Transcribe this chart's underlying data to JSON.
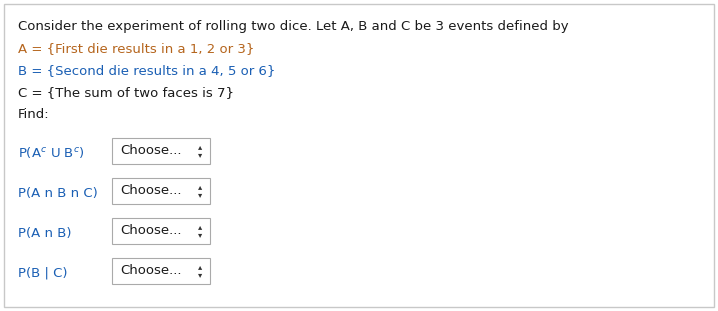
{
  "bg_color": "#ffffff",
  "border_color": "#c8c8c8",
  "text_color_black": "#1a1a1a",
  "text_color_blue": "#1a5fb4",
  "text_color_orange": "#b5651d",
  "header_text": "Consider the experiment of rolling two dice. Let A, B and C be 3 events defined by",
  "line_A": "A = {First die results in a 1, 2 or 3}",
  "line_B": "B = {Second die results in a 4, 5 or 6}",
  "line_C": "C = {The sum of two faces is 7}",
  "line_find": "Find:",
  "font_size": 9.5,
  "question_labels": [
    "P(A$^c$ U B$^c$)",
    "P(A n B n C)",
    "P(A n B)",
    "P(B | C)"
  ],
  "question_colors": [
    "#1a5fb4",
    "#1a5fb4",
    "#1a5fb4",
    "#1a5fb4"
  ],
  "box_text": "Choose...",
  "arrow_char": "↕"
}
